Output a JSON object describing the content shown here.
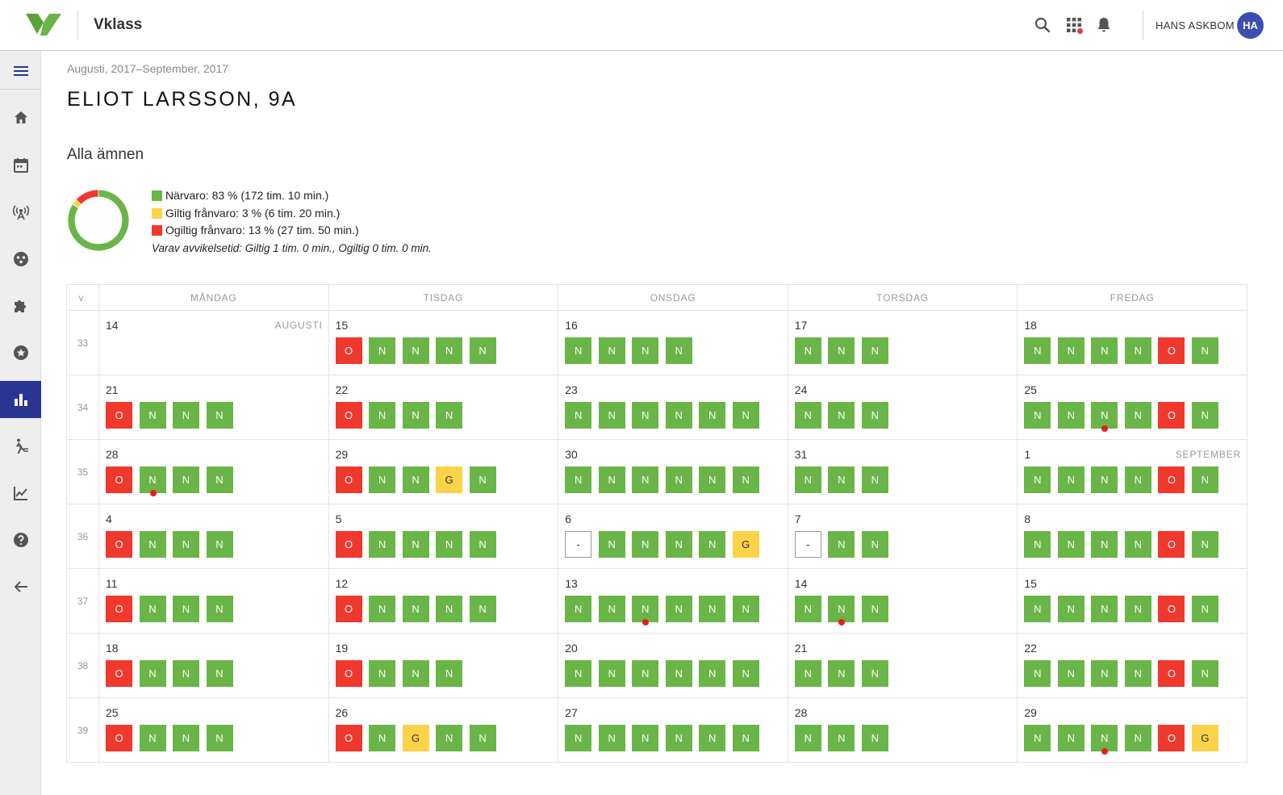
{
  "header": {
    "app_name": "Vklass",
    "user_name": "HANS ASKBOM",
    "avatar_initials": "HA",
    "icons": [
      "search-icon",
      "apps-icon",
      "bell-icon"
    ]
  },
  "sidebar": {
    "items": [
      {
        "icon": "menu-icon"
      },
      {
        "icon": "home-icon"
      },
      {
        "icon": "calendar-icon"
      },
      {
        "icon": "broadcast-icon"
      },
      {
        "icon": "groups-icon"
      },
      {
        "icon": "puzzle-icon"
      },
      {
        "icon": "star-icon"
      },
      {
        "icon": "bar-chart-icon",
        "active": true
      },
      {
        "icon": "attendance-icon"
      },
      {
        "icon": "trend-icon"
      },
      {
        "icon": "help-icon"
      },
      {
        "icon": "back-arrow-icon"
      }
    ]
  },
  "page": {
    "date_range": "Augusti, 2017–September, 2017",
    "title": "ELIOT LARSSON, 9A",
    "subject": "Alla ämnen"
  },
  "summary": {
    "colors": {
      "present": "#6ab547",
      "valid_absence": "#fbd348",
      "invalid_absence": "#f0382c"
    },
    "chart_data": {
      "type": "pie",
      "labels": [
        "Närvaro",
        "Giltig frånvaro",
        "Ogiltig frånvaro"
      ],
      "values": [
        83,
        3,
        13
      ]
    },
    "legend": [
      {
        "key": "present",
        "text": "Närvaro: 83 % (172 tim. 10 min.)"
      },
      {
        "key": "valid_absence",
        "text": "Giltig frånvaro: 3 % (6 tim. 20 min.)"
      },
      {
        "key": "invalid_absence",
        "text": "Ogiltig frånvaro: 13 % (27 tim. 50 min.)"
      }
    ],
    "note": "Varav avvikelsetid: Giltig 1 tim. 0 min., Ogiltig 0 tim. 0 min."
  },
  "calendar": {
    "week_header": "v.",
    "days": [
      "MÅNDAG",
      "TISDAG",
      "ONSDAG",
      "TORSDAG",
      "FREDAG"
    ],
    "weeks": [
      {
        "week": "33",
        "days": [
          {
            "date": "14",
            "month": "AUGUSTI",
            "cells": []
          },
          {
            "date": "15",
            "cells": [
              "O",
              "N",
              "N",
              "N",
              "N"
            ]
          },
          {
            "date": "16",
            "cells": [
              "N",
              "N",
              "N",
              "N"
            ]
          },
          {
            "date": "17",
            "cells": [
              "N",
              "N",
              "N"
            ]
          },
          {
            "date": "18",
            "cells": [
              "N",
              "N",
              "N",
              "N",
              "O",
              "N"
            ]
          }
        ]
      },
      {
        "week": "34",
        "days": [
          {
            "date": "21",
            "cells": [
              "O",
              "N",
              "N",
              "N"
            ]
          },
          {
            "date": "22",
            "cells": [
              "O",
              "N",
              "N",
              "N"
            ]
          },
          {
            "date": "23",
            "cells": [
              "N",
              "N",
              "N",
              "N",
              "N",
              "N"
            ]
          },
          {
            "date": "24",
            "cells": [
              "N",
              "N",
              "N"
            ]
          },
          {
            "date": "25",
            "cells": [
              "N",
              "N",
              "N*",
              "N",
              "O",
              "N"
            ]
          }
        ]
      },
      {
        "week": "35",
        "days": [
          {
            "date": "28",
            "cells": [
              "O",
              "N*",
              "N",
              "N"
            ]
          },
          {
            "date": "29",
            "cells": [
              "O",
              "N",
              "N",
              "G",
              "N"
            ]
          },
          {
            "date": "30",
            "cells": [
              "N",
              "N",
              "N",
              "N",
              "N",
              "N"
            ]
          },
          {
            "date": "31",
            "cells": [
              "N",
              "N",
              "N"
            ]
          },
          {
            "date": "1",
            "month": "SEPTEMBER",
            "cells": [
              "N",
              "N",
              "N",
              "N",
              "O",
              "N"
            ]
          }
        ]
      },
      {
        "week": "36",
        "days": [
          {
            "date": "4",
            "cells": [
              "O",
              "N",
              "N",
              "N"
            ]
          },
          {
            "date": "5",
            "cells": [
              "O",
              "N",
              "N",
              "N",
              "N"
            ]
          },
          {
            "date": "6",
            "cells": [
              "-",
              "N",
              "N",
              "N",
              "N",
              "G"
            ]
          },
          {
            "date": "7",
            "cells": [
              "-",
              "N",
              "N"
            ]
          },
          {
            "date": "8",
            "cells": [
              "N",
              "N",
              "N",
              "N",
              "O",
              "N"
            ]
          }
        ]
      },
      {
        "week": "37",
        "days": [
          {
            "date": "11",
            "cells": [
              "O",
              "N",
              "N",
              "N"
            ]
          },
          {
            "date": "12",
            "cells": [
              "O",
              "N",
              "N",
              "N",
              "N"
            ]
          },
          {
            "date": "13",
            "cells": [
              "N",
              "N",
              "N*",
              "N",
              "N",
              "N"
            ]
          },
          {
            "date": "14",
            "cells": [
              "N",
              "N*",
              "N"
            ]
          },
          {
            "date": "15",
            "cells": [
              "N",
              "N",
              "N",
              "N",
              "O",
              "N"
            ]
          }
        ]
      },
      {
        "week": "38",
        "days": [
          {
            "date": "18",
            "cells": [
              "O",
              "N",
              "N",
              "N"
            ]
          },
          {
            "date": "19",
            "cells": [
              "O",
              "N",
              "N",
              "N"
            ]
          },
          {
            "date": "20",
            "cells": [
              "N",
              "N",
              "N",
              "N",
              "N",
              "N"
            ]
          },
          {
            "date": "21",
            "cells": [
              "N",
              "N",
              "N"
            ]
          },
          {
            "date": "22",
            "cells": [
              "N",
              "N",
              "N",
              "N",
              "O",
              "N"
            ]
          }
        ]
      },
      {
        "week": "39",
        "days": [
          {
            "date": "25",
            "cells": [
              "O",
              "N",
              "N",
              "N"
            ]
          },
          {
            "date": "26",
            "cells": [
              "O",
              "N",
              "G",
              "N",
              "N"
            ]
          },
          {
            "date": "27",
            "cells": [
              "N",
              "N",
              "N",
              "N",
              "N",
              "N"
            ]
          },
          {
            "date": "28",
            "cells": [
              "N",
              "N",
              "N"
            ]
          },
          {
            "date": "29",
            "cells": [
              "N",
              "N",
              "N*",
              "N",
              "O",
              "G"
            ]
          }
        ]
      }
    ]
  }
}
